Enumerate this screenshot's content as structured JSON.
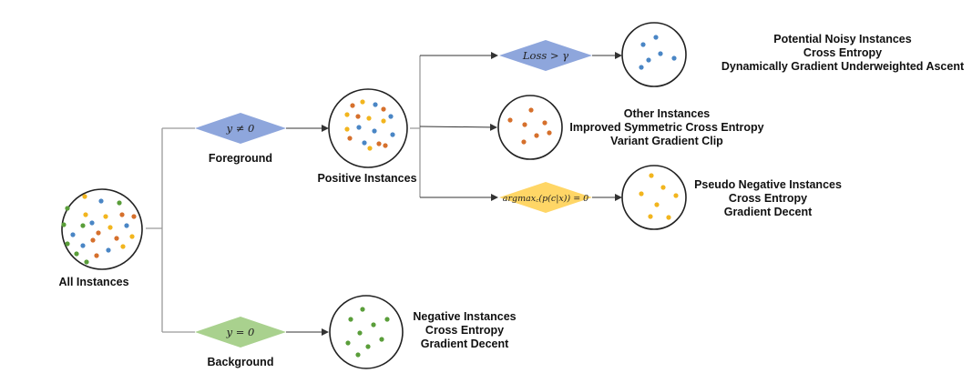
{
  "colors": {
    "blue_dot": "#4a86c5",
    "orange_dot": "#d6702c",
    "yellow_dot": "#f2b51e",
    "green_dot": "#5a9e3a",
    "blue_diamond": "#8ea6dc",
    "green_diamond": "#a9d18e",
    "yellow_diamond": "#ffd666"
  },
  "nodes": {
    "all": {
      "label": "All Instances"
    },
    "foreground": {
      "label": "Foreground",
      "condition": "y ≠ 0"
    },
    "background": {
      "label": "Background",
      "condition": "y = 0"
    },
    "positive": {
      "label": "Positive Instances"
    },
    "negative": {
      "lines": [
        "Negative Instances",
        "Cross Entropy",
        "Gradient Decent"
      ]
    },
    "noisy": {
      "condition": "Loss > γ",
      "lines": [
        "Potential Noisy Instances",
        "Cross Entropy",
        "Dynamically Gradient Underweighted Ascent"
      ]
    },
    "other": {
      "lines": [
        "Other Instances",
        "Improved Symmetric Cross Entropy",
        "Variant Gradient Clip"
      ]
    },
    "pseudo": {
      "condition": "argmax꜀(p(c|x)) = 0",
      "lines": [
        "Pseudo Negative Instances",
        "Cross Entropy",
        "Gradient Decent"
      ]
    }
  }
}
